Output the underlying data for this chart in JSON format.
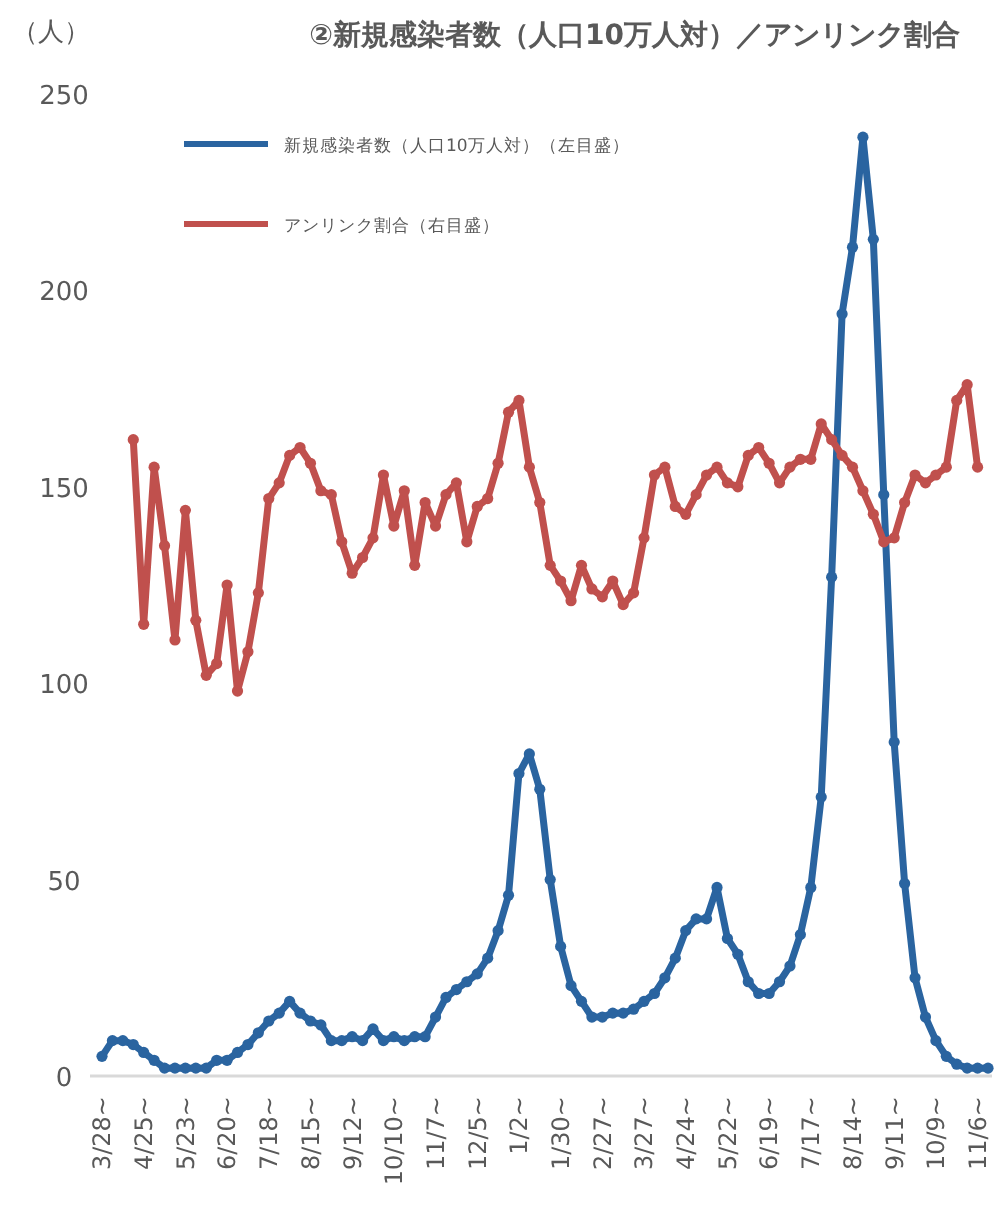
{
  "chart_data": {
    "type": "line",
    "title": "②新規感染者数（人口10万人対）／アンリンク割合",
    "ylabel": "（人）",
    "categories": [
      "3/28~",
      null,
      null,
      null,
      "4/25~",
      null,
      null,
      null,
      "5/23~",
      null,
      null,
      null,
      "6/20~",
      null,
      null,
      null,
      "7/18~",
      null,
      null,
      null,
      "8/15~",
      null,
      null,
      null,
      "9/12~",
      null,
      null,
      null,
      "10/10~",
      null,
      null,
      null,
      "11/7~",
      null,
      null,
      null,
      "12/5~",
      null,
      null,
      null,
      "1/2~",
      null,
      null,
      null,
      "1/30~",
      null,
      null,
      null,
      "2/27~",
      null,
      null,
      null,
      "3/27~",
      null,
      null,
      null,
      "4/24~",
      null,
      null,
      null,
      "5/22~",
      null,
      null,
      null,
      "6/19~",
      null,
      null,
      null,
      "7/17~",
      null,
      null,
      null,
      "8/14~",
      null,
      null,
      null,
      "9/11~",
      null,
      null,
      null,
      "10/9~",
      null,
      null,
      null,
      "11/6~",
      null
    ],
    "series": [
      {
        "name": "新規感染者数（人口10万人対）（左目盛）",
        "color": "#2a64a0",
        "values": [
          5,
          9,
          9,
          8,
          6,
          4,
          2,
          2,
          2,
          2,
          2,
          4,
          4,
          6,
          8,
          11,
          14,
          16,
          19,
          16,
          14,
          13,
          9,
          9,
          10,
          9,
          12,
          9,
          10,
          9,
          10,
          10,
          15,
          20,
          22,
          24,
          26,
          30,
          37,
          46,
          77,
          82,
          73,
          50,
          33,
          23,
          19,
          15,
          15,
          16,
          16,
          17,
          19,
          21,
          25,
          30,
          37,
          40,
          40,
          48,
          35,
          31,
          24,
          21,
          21,
          24,
          28,
          36,
          48,
          71,
          127,
          194,
          211,
          239,
          213,
          148,
          85,
          49,
          25,
          15,
          9,
          5,
          3,
          2,
          2,
          2
        ]
      },
      {
        "name": "アンリンク割合（右目盛）",
        "color": "#c0504d",
        "values": [
          null,
          null,
          null,
          162,
          115,
          155,
          135,
          111,
          144,
          116,
          102,
          105,
          125,
          98,
          108,
          123,
          147,
          151,
          158,
          160,
          156,
          149,
          148,
          136,
          128,
          132,
          137,
          153,
          140,
          149,
          130,
          146,
          140,
          148,
          151,
          136,
          145,
          147,
          156,
          169,
          172,
          155,
          146,
          130,
          126,
          121,
          130,
          124,
          122,
          126,
          120,
          123,
          137,
          153,
          155,
          145,
          143,
          148,
          153,
          155,
          151,
          150,
          158,
          160,
          156,
          151,
          155,
          157,
          157,
          166,
          162,
          158,
          155,
          149,
          143,
          136,
          137,
          146,
          153,
          151,
          153,
          155,
          172,
          176,
          155,
          null
        ]
      }
    ],
    "ylim": [
      0,
      250
    ],
    "yticks": [
      0,
      50,
      100,
      150,
      200,
      250
    ],
    "marker": "circle",
    "legend": "top left",
    "grid": false
  }
}
